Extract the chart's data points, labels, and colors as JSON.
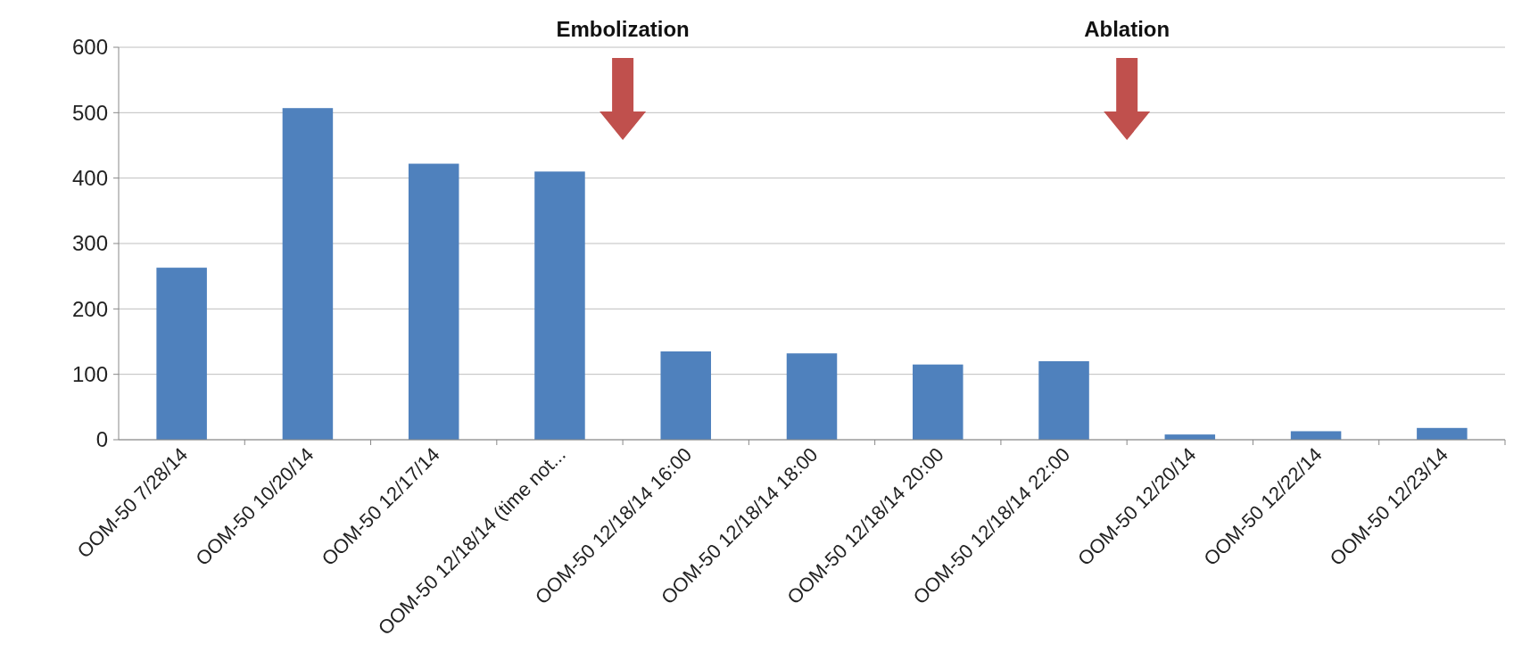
{
  "chart_data": {
    "type": "bar",
    "categories": [
      "OOM-50 7/28/14",
      "OOM-50 10/20/14",
      "OOM-50 12/17/14",
      "OOM-50 12/18/14 (time not...",
      "OOM-50 12/18/14 16:00",
      "OOM-50 12/18/14 18:00",
      "OOM-50 12/18/14 20:00",
      "OOM-50 12/18/14 22:00",
      "OOM-50 12/20/14",
      "OOM-50 12/22/14",
      "OOM-50 12/23/14"
    ],
    "values": [
      263,
      507,
      422,
      410,
      135,
      132,
      115,
      120,
      8,
      13,
      18
    ],
    "color": "#4f81bd",
    "ylim": [
      0,
      600
    ],
    "yticks": [
      0,
      100,
      200,
      300,
      400,
      500,
      600
    ],
    "grid": "y",
    "annotations": [
      "Embolization",
      "Ablation"
    ]
  }
}
